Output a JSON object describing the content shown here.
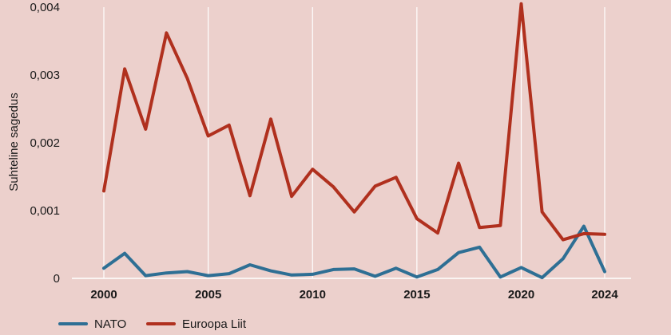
{
  "chart_data": {
    "type": "line",
    "title": "",
    "xlabel": "",
    "ylabel": "Suhteline sagedus",
    "xlim": [
      1999,
      2026
    ],
    "ylim": [
      0,
      0.004
    ],
    "x_ticks": [
      "2000",
      "2005",
      "2010",
      "2015",
      "2020",
      "2024"
    ],
    "y_ticks": [
      "0",
      "0,001",
      "0,002",
      "0,003",
      "0,004"
    ],
    "grid": "vertical",
    "legend": "bottom-left",
    "x": [
      2000,
      2001,
      2002,
      2003,
      2004,
      2005,
      2006,
      2007,
      2008,
      2009,
      2010,
      2011,
      2012,
      2013,
      2014,
      2015,
      2016,
      2017,
      2018,
      2019,
      2020,
      2021,
      2022,
      2023,
      2024
    ],
    "series": [
      {
        "name": "NATO",
        "color": "#2e6f94",
        "values": [
          0.00015,
          0.00037,
          4e-05,
          8e-05,
          0.0001,
          4e-05,
          7e-05,
          0.0002,
          0.00011,
          5e-05,
          6e-05,
          0.00013,
          0.00014,
          3e-05,
          0.00015,
          2e-05,
          0.00013,
          0.00038,
          0.00046,
          2e-05,
          0.00016,
          1e-05,
          0.00029,
          0.00077,
          0.0001
        ]
      },
      {
        "name": "Euroopa Liit",
        "color": "#b0301e",
        "values": [
          0.00129,
          0.00309,
          0.0022,
          0.00362,
          0.00295,
          0.0021,
          0.00226,
          0.00122,
          0.00235,
          0.00121,
          0.00161,
          0.00135,
          0.00098,
          0.00136,
          0.00149,
          0.00088,
          0.00067,
          0.0017,
          0.00075,
          0.00078,
          0.00405,
          0.00098,
          0.00057,
          0.00066,
          0.00065
        ]
      }
    ]
  }
}
